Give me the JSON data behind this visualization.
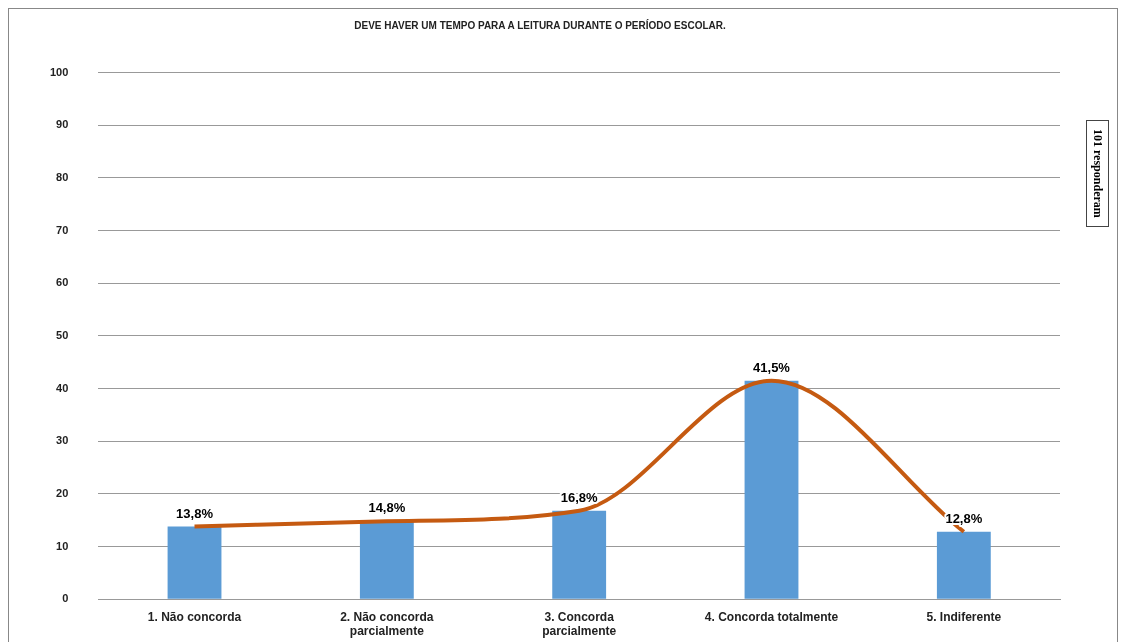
{
  "chart_data": {
    "type": "bar",
    "title": "DEVE HAVER UM TEMPO PARA A LEITURA DURANTE O PERÍODO ESCOLAR.",
    "categories": [
      "1. Não concorda",
      "2. Não concorda parcialmente",
      "3. Concorda parcialmente",
      "4. Concorda totalmente",
      "5. Indiferente"
    ],
    "series": [
      {
        "color": "#5b9bd5",
        "values": [
          13.8,
          14.8,
          16.8,
          41.5,
          12.8
        ],
        "value_labels": [
          "13,8%",
          "14,8%",
          "16,8%",
          "41,5%",
          "12,8%"
        ]
      },
      {
        "type": "line",
        "color": "#c55a11",
        "values": [
          13.8,
          14.8,
          16.8,
          41.5,
          12.8
        ]
      }
    ],
    "ylim": [
      0,
      100
    ],
    "yticks": [
      0,
      10,
      20,
      30,
      40,
      50,
      60,
      70,
      80,
      90,
      100
    ],
    "grid": "y",
    "legend": false,
    "annotations": [
      "101 responderam"
    ]
  }
}
